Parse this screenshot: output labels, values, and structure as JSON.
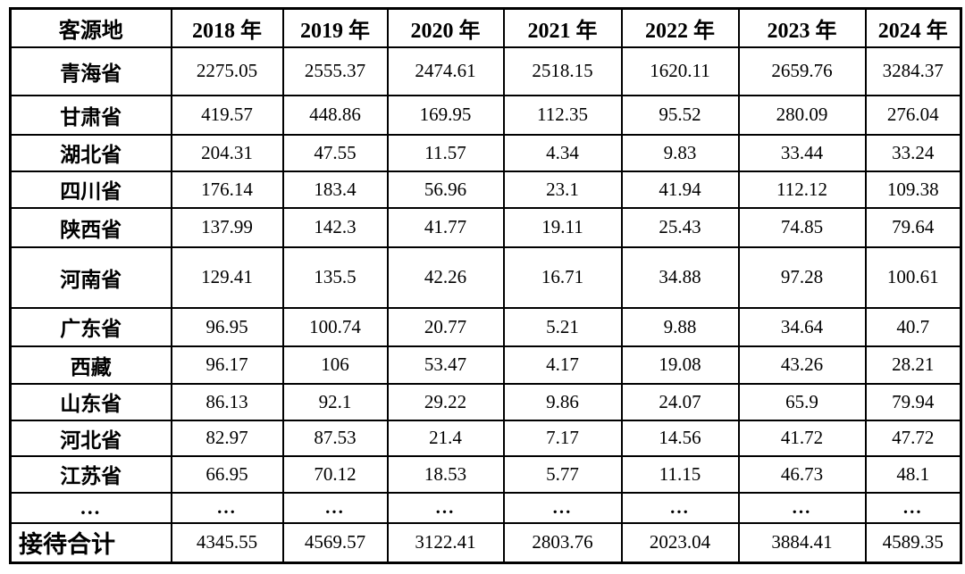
{
  "table": {
    "header": [
      "客源地",
      "2018 年",
      "2019 年",
      "2020 年",
      "2021 年",
      "2022 年",
      "2023 年",
      "2024 年"
    ],
    "rows": [
      {
        "label": "青海省",
        "values": [
          "2275.05",
          "2555.37",
          "2474.61",
          "2518.15",
          "1620.11",
          "2659.76",
          "3284.37"
        ]
      },
      {
        "label": "甘肃省",
        "values": [
          "419.57",
          "448.86",
          "169.95",
          "112.35",
          "95.52",
          "280.09",
          "276.04"
        ]
      },
      {
        "label": "湖北省",
        "values": [
          "204.31",
          "47.55",
          "11.57",
          "4.34",
          "9.83",
          "33.44",
          "33.24"
        ]
      },
      {
        "label": "四川省",
        "values": [
          "176.14",
          "183.4",
          "56.96",
          "23.1",
          "41.94",
          "112.12",
          "109.38"
        ]
      },
      {
        "label": "陕西省",
        "values": [
          "137.99",
          "142.3",
          "41.77",
          "19.11",
          "25.43",
          "74.85",
          "79.64"
        ]
      },
      {
        "label": "河南省",
        "values": [
          "129.41",
          "135.5",
          "42.26",
          "16.71",
          "34.88",
          "97.28",
          "100.61"
        ]
      },
      {
        "label": "广东省",
        "values": [
          "96.95",
          "100.74",
          "20.77",
          "5.21",
          "9.88",
          "34.64",
          "40.7"
        ]
      },
      {
        "label": "西藏",
        "values": [
          "96.17",
          "106",
          "53.47",
          "4.17",
          "19.08",
          "43.26",
          "28.21"
        ]
      },
      {
        "label": "山东省",
        "values": [
          "86.13",
          "92.1",
          "29.22",
          "9.86",
          "24.07",
          "65.9",
          "79.94"
        ]
      },
      {
        "label": "河北省",
        "values": [
          "82.97",
          "87.53",
          "21.4",
          "7.17",
          "14.56",
          "41.72",
          "47.72"
        ]
      },
      {
        "label": "江苏省",
        "values": [
          "66.95",
          "70.12",
          "18.53",
          "5.77",
          "11.15",
          "46.73",
          "48.1"
        ]
      },
      {
        "label": "...",
        "values": [
          "...",
          "...",
          "...",
          "...",
          "...",
          "...",
          "..."
        ]
      },
      {
        "label": "接待合计",
        "values": [
          "4345.55",
          "4569.57",
          "3122.41",
          "2803.76",
          "2023.04",
          "3884.41",
          "4589.35"
        ]
      }
    ]
  }
}
